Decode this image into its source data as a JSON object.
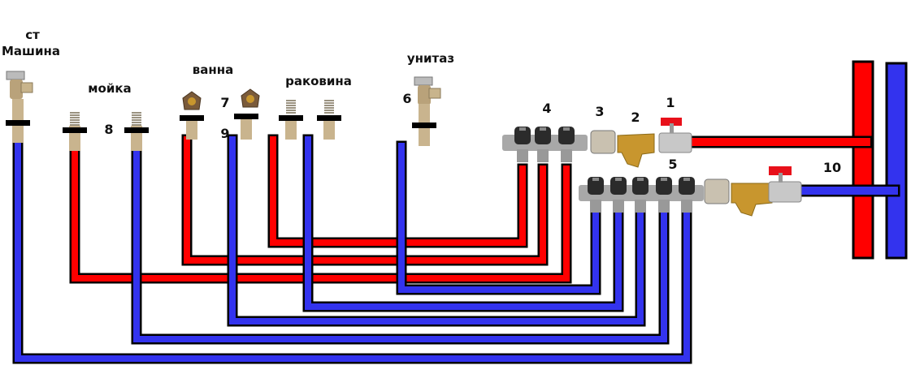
{
  "labels": {
    "washing_machine_line1": "ст",
    "washing_machine_line2": "Машина",
    "kitchen_sink": "мойка",
    "bathtub": "ванна",
    "washbasin": "раковина",
    "toilet": "унитаз"
  },
  "numbers": {
    "n1": "1",
    "n2": "2",
    "n3": "3",
    "n4": "4",
    "n5": "5",
    "n6": "6",
    "n7": "7",
    "n8": "8",
    "n9": "9",
    "n10": "10"
  },
  "colors": {
    "hot": "#ff0000",
    "cold": "#3333ee",
    "outline": "#000000",
    "fitting": "#c9b48e",
    "manifold": "#a8a8a8",
    "brass": "#c8962e"
  }
}
